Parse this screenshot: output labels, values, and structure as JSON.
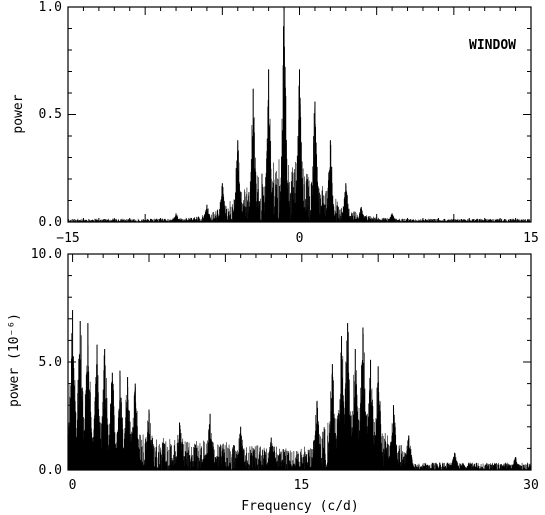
{
  "chart_data": [
    {
      "type": "line",
      "panel_label": "WINDOW",
      "ylabel": "power",
      "xlabel": "",
      "xlim": [
        -15,
        15
      ],
      "ylim": [
        0,
        1
      ],
      "xticks": [
        -15,
        0,
        15
      ],
      "xtick_labels": [
        "−15",
        "0",
        "15"
      ],
      "yticks": [
        0,
        0.5,
        1
      ],
      "ytick_labels": [
        "0.0",
        "0.5",
        "1.0"
      ],
      "grid": false,
      "color": "#000000",
      "envelope_peaks": [
        {
          "x": -1.0,
          "y": 1.0
        },
        {
          "x": -2.0,
          "y": 0.71
        },
        {
          "x": 0.0,
          "y": 0.71
        },
        {
          "x": -3.0,
          "y": 0.62
        },
        {
          "x": 1.0,
          "y": 0.56
        },
        {
          "x": -4.0,
          "y": 0.38
        },
        {
          "x": 2.0,
          "y": 0.38
        },
        {
          "x": -5.0,
          "y": 0.18
        },
        {
          "x": 3.0,
          "y": 0.18
        },
        {
          "x": -6.0,
          "y": 0.08
        },
        {
          "x": 4.0,
          "y": 0.07
        },
        {
          "x": -8.0,
          "y": 0.04
        },
        {
          "x": 6.0,
          "y": 0.04
        },
        {
          "x": -12.0,
          "y": 0.01
        },
        {
          "x": 12.0,
          "y": 0.01
        }
      ]
    },
    {
      "type": "line",
      "panel_label": "",
      "ylabel": "power (10⁻⁶)",
      "xlabel": "Frequency (c/d)",
      "xlim": [
        -0.3,
        30
      ],
      "ylim": [
        0,
        10
      ],
      "xticks": [
        0,
        15,
        30
      ],
      "xtick_labels": [
        "0",
        "15",
        "30"
      ],
      "yticks": [
        0,
        5,
        10
      ],
      "ytick_labels": [
        "0.0",
        "5.0",
        "10.0"
      ],
      "grid": false,
      "color": "#000000",
      "envelope_peaks": [
        {
          "x": 0.0,
          "y": 7.4
        },
        {
          "x": 0.5,
          "y": 6.9
        },
        {
          "x": 1.0,
          "y": 6.8
        },
        {
          "x": 1.6,
          "y": 5.8
        },
        {
          "x": 2.1,
          "y": 5.6
        },
        {
          "x": 2.6,
          "y": 4.5
        },
        {
          "x": 3.1,
          "y": 4.6
        },
        {
          "x": 3.6,
          "y": 4.3
        },
        {
          "x": 4.1,
          "y": 4.0
        },
        {
          "x": 5.0,
          "y": 2.8
        },
        {
          "x": 7.0,
          "y": 2.2
        },
        {
          "x": 9.0,
          "y": 2.6
        },
        {
          "x": 11.0,
          "y": 2.0
        },
        {
          "x": 13.0,
          "y": 1.5
        },
        {
          "x": 16.0,
          "y": 3.2
        },
        {
          "x": 17.0,
          "y": 4.9
        },
        {
          "x": 17.6,
          "y": 6.2
        },
        {
          "x": 18.0,
          "y": 6.8
        },
        {
          "x": 18.5,
          "y": 5.6
        },
        {
          "x": 19.0,
          "y": 6.6
        },
        {
          "x": 19.5,
          "y": 5.1
        },
        {
          "x": 20.0,
          "y": 4.8
        },
        {
          "x": 21.0,
          "y": 3.0
        },
        {
          "x": 22.0,
          "y": 1.6
        },
        {
          "x": 25.0,
          "y": 0.8
        },
        {
          "x": 29.0,
          "y": 0.6
        }
      ]
    }
  ]
}
